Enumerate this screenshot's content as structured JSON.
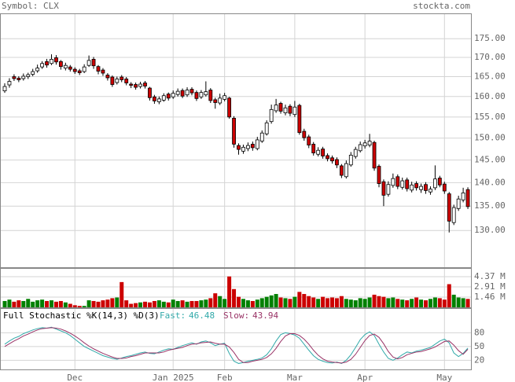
{
  "chart_data": [
    {
      "type": "candlestick",
      "title": "Symbol: CLX",
      "source": "stockta.com",
      "categories": [
        null,
        null,
        null,
        null,
        null,
        null,
        null,
        null,
        null,
        null,
        null,
        null,
        null,
        null,
        null,
        "Dec",
        null,
        null,
        null,
        null,
        null,
        null,
        null,
        null,
        null,
        null,
        null,
        null,
        null,
        null,
        null,
        null,
        null,
        null,
        null,
        null,
        "Jan 2025",
        null,
        null,
        null,
        null,
        null,
        null,
        null,
        null,
        null,
        null,
        "Feb",
        null,
        null,
        null,
        null,
        null,
        null,
        null,
        null,
        null,
        null,
        null,
        null,
        null,
        null,
        "Mar",
        null,
        null,
        null,
        null,
        null,
        null,
        null,
        null,
        null,
        null,
        null,
        null,
        null,
        null,
        "Apr",
        null,
        null,
        null,
        null,
        null,
        null,
        null,
        null,
        null,
        null,
        null,
        null,
        null,
        null,
        null,
        null,
        "May",
        null,
        null,
        null,
        null,
        null
      ],
      "open": [
        161.4,
        162.9,
        165.0,
        164.6,
        164.5,
        165.0,
        165.6,
        166.5,
        167.5,
        168.9,
        168.4,
        169.9,
        168.9,
        167.2,
        167.5,
        166.9,
        166.5,
        166.3,
        167.9,
        169.5,
        167.6,
        166.7,
        165.4,
        164.9,
        163.5,
        164.9,
        164.4,
        163.1,
        163.0,
        162.5,
        163.4,
        162.1,
        159.9,
        158.7,
        159.1,
        160.6,
        159.9,
        160.5,
        161.5,
        160.4,
        161.8,
        161.0,
        159.9,
        160.4,
        161.6,
        159.2,
        158.4,
        159.3,
        159.6,
        154.7,
        148.3,
        147.0,
        147.6,
        148.6,
        147.6,
        149.3,
        151.0,
        153.9,
        156.5,
        158.3,
        156.0,
        157.6,
        155.6,
        157.8,
        151.6,
        150.3,
        148.6,
        146.3,
        147.5,
        146.0,
        145.5,
        145.1,
        143.7,
        141.3,
        143.9,
        145.8,
        147.1,
        148.2,
        148.4,
        149.0,
        143.6,
        140.2,
        137.5,
        139.4,
        141.3,
        139.0,
        140.6,
        138.4,
        139.8,
        138.5,
        139.6,
        138.0,
        138.9,
        141.0,
        139.7,
        137.6,
        131.6,
        134.5,
        136.3,
        138.5
      ],
      "high": [
        163.3,
        164.6,
        165.6,
        165.1,
        165.8,
        166.0,
        167.0,
        168.1,
        169.0,
        169.6,
        170.8,
        170.6,
        169.3,
        168.6,
        168.0,
        167.4,
        167.0,
        168.2,
        170.5,
        170.1,
        168.0,
        167.2,
        165.9,
        165.3,
        165.0,
        165.4,
        164.9,
        163.6,
        163.5,
        163.7,
        163.9,
        162.4,
        160.4,
        160.0,
        160.8,
        161.0,
        161.5,
        162.0,
        162.0,
        162.3,
        162.3,
        161.5,
        161.6,
        163.8,
        162.1,
        159.7,
        160.7,
        160.9,
        159.9,
        155.2,
        148.8,
        148.5,
        149.0,
        149.2,
        150.3,
        151.8,
        154.2,
        158.0,
        159.4,
        158.7,
        158.0,
        158.1,
        158.9,
        158.2,
        152.2,
        150.8,
        149.1,
        147.9,
        148.0,
        146.5,
        146.0,
        145.6,
        144.1,
        144.9,
        146.8,
        148.0,
        149.2,
        149.6,
        151.0,
        149.4,
        144.0,
        140.7,
        140.3,
        142.0,
        141.8,
        141.1,
        141.1,
        140.2,
        140.3,
        139.8,
        140.1,
        139.2,
        143.8,
        141.5,
        140.2,
        138.0,
        135.3,
        137.2,
        138.9,
        139.0
      ],
      "low": [
        160.9,
        162.2,
        163.9,
        163.6,
        164.0,
        164.4,
        165.1,
        166.0,
        167.0,
        167.3,
        168.0,
        168.1,
        166.8,
        166.6,
        166.3,
        165.7,
        165.4,
        165.9,
        167.5,
        167.0,
        165.6,
        165.2,
        164.0,
        162.4,
        163.0,
        163.6,
        162.8,
        162.1,
        161.7,
        162.0,
        162.0,
        159.0,
        158.2,
        158.1,
        158.7,
        159.0,
        159.4,
        160.0,
        159.6,
        159.9,
        160.3,
        158.9,
        159.4,
        160.0,
        158.4,
        157.0,
        157.9,
        158.8,
        154.6,
        147.8,
        146.2,
        146.4,
        147.0,
        147.1,
        147.2,
        148.9,
        150.6,
        153.4,
        156.0,
        155.8,
        155.4,
        155.2,
        155.0,
        150.8,
        149.4,
        147.7,
        146.0,
        145.8,
        145.3,
        144.7,
        144.2,
        143.2,
        141.0,
        140.9,
        143.5,
        145.3,
        146.7,
        147.6,
        147.9,
        142.6,
        139.0,
        135.0,
        137.0,
        138.9,
        138.6,
        138.5,
        138.1,
        137.9,
        138.3,
        137.8,
        137.6,
        137.4,
        138.4,
        139.0,
        137.6,
        129.6,
        131.1,
        134.0,
        135.8,
        134.4
      ],
      "close": [
        162.5,
        163.8,
        164.5,
        164.2,
        165.1,
        165.5,
        166.3,
        167.2,
        168.4,
        168.0,
        169.5,
        168.8,
        167.6,
        167.9,
        166.9,
        166.3,
        166.0,
        167.5,
        169.2,
        167.8,
        166.4,
        165.9,
        164.7,
        163.0,
        164.4,
        164.2,
        163.4,
        162.8,
        162.3,
        163.1,
        162.6,
        159.7,
        158.9,
        159.4,
        160.2,
        159.6,
        160.8,
        161.3,
        160.1,
        161.6,
        160.9,
        159.5,
        161.0,
        161.2,
        159.0,
        158.5,
        159.6,
        160.2,
        155.0,
        148.6,
        147.4,
        147.9,
        148.3,
        147.8,
        149.6,
        151.2,
        153.6,
        156.8,
        157.9,
        156.4,
        157.2,
        155.9,
        157.4,
        151.3,
        150.1,
        148.4,
        146.6,
        147.2,
        145.9,
        145.3,
        144.8,
        143.9,
        141.6,
        144.2,
        146.1,
        147.4,
        148.5,
        148.9,
        149.3,
        143.2,
        139.8,
        137.3,
        139.6,
        140.9,
        139.2,
        140.4,
        138.7,
        139.5,
        138.9,
        139.2,
        138.3,
        138.6,
        140.8,
        139.5,
        138.2,
        131.9,
        134.7,
        136.5,
        137.8,
        134.9
      ],
      "up_color": "#ffffff",
      "down_color": "#cc0000",
      "log_scale": true,
      "grid": true,
      "ylim": [
        122.8,
        182.0
      ],
      "yticks": [
        {
          "value": 175,
          "label": "175.00"
        },
        {
          "value": 170,
          "label": "170.00"
        },
        {
          "value": 165,
          "label": "165.00"
        },
        {
          "value": 160,
          "label": "160.00"
        },
        {
          "value": 155,
          "label": "155.00"
        },
        {
          "value": 150,
          "label": "150.00"
        },
        {
          "value": 145,
          "label": "145.00"
        },
        {
          "value": 140,
          "label": "140.00"
        },
        {
          "value": 135,
          "label": "135.00"
        },
        {
          "value": 130,
          "label": "130.00"
        }
      ]
    },
    {
      "type": "bar",
      "values": [
        0.9,
        1.1,
        0.8,
        1.0,
        0.9,
        1.2,
        0.8,
        1.0,
        1.1,
        0.9,
        1.0,
        0.8,
        0.9,
        0.7,
        0.5,
        0.3,
        0.2,
        0.2,
        1.0,
        0.9,
        0.8,
        1.0,
        1.1,
        1.3,
        1.4,
        3.6,
        1.0,
        0.5,
        0.6,
        0.7,
        0.8,
        0.7,
        0.9,
        1.0,
        0.8,
        0.7,
        1.1,
        0.9,
        1.0,
        0.8,
        0.9,
        0.9,
        1.0,
        1.1,
        1.3,
        2.0,
        1.6,
        1.2,
        4.4,
        2.6,
        1.5,
        1.2,
        1.0,
        0.9,
        1.1,
        1.3,
        1.5,
        1.7,
        1.9,
        1.4,
        1.3,
        1.2,
        1.5,
        2.2,
        1.9,
        1.6,
        1.4,
        1.2,
        1.5,
        1.3,
        1.4,
        1.3,
        1.6,
        1.2,
        1.1,
        1.0,
        1.3,
        1.2,
        1.4,
        1.8,
        1.6,
        1.5,
        1.3,
        1.4,
        1.2,
        1.1,
        1.0,
        1.2,
        1.4,
        1.1,
        1.0,
        1.2,
        1.4,
        1.3,
        1.1,
        3.3,
        1.8,
        1.4,
        1.3,
        1.2
      ],
      "up_color": "#008000",
      "down_color": "#cc0000",
      "ylim": [
        0,
        5.49
      ],
      "yticks": [
        {
          "value": 4.37,
          "label": "4.37 M"
        },
        {
          "value": 2.91,
          "label": "2.91 M"
        },
        {
          "value": 1.46,
          "label": "1.46 M"
        }
      ]
    },
    {
      "type": "line",
      "title": "Full Stochastic %K(14,3) %D(3)",
      "series": [
        {
          "name": "Fast:",
          "color": "#33aaaa",
          "values": [
            55,
            62,
            68,
            72,
            78,
            82,
            86,
            89,
            91,
            90,
            92,
            88,
            84,
            80,
            74,
            66,
            58,
            50,
            45,
            40,
            35,
            30,
            27,
            24,
            22,
            25,
            28,
            30,
            33,
            36,
            38,
            35,
            34,
            38,
            42,
            45,
            44,
            48,
            52,
            55,
            58,
            55,
            60,
            62,
            58,
            52,
            55,
            57,
            35,
            18,
            13,
            15,
            18,
            20,
            22,
            25,
            32,
            45,
            62,
            76,
            80,
            78,
            75,
            68,
            55,
            42,
            30,
            22,
            18,
            15,
            14,
            16,
            13,
            20,
            32,
            48,
            65,
            76,
            82,
            74,
            55,
            38,
            24,
            20,
            25,
            32,
            38,
            36,
            40,
            42,
            45,
            48,
            55,
            62,
            66,
            58,
            36,
            28,
            35,
            46.48
          ]
        },
        {
          "name": "Slow:",
          "color": "#993366",
          "values": [
            50,
            56,
            62,
            67,
            73,
            77,
            82,
            86,
            89,
            90,
            91,
            90,
            88,
            84,
            79,
            73,
            66,
            58,
            51,
            45,
            40,
            35,
            31,
            27,
            24,
            24,
            25,
            28,
            30,
            33,
            36,
            36,
            36,
            36,
            38,
            42,
            44,
            46,
            48,
            52,
            55,
            56,
            58,
            59,
            60,
            57,
            55,
            55,
            49,
            37,
            22,
            15,
            15,
            18,
            20,
            22,
            26,
            34,
            46,
            61,
            73,
            78,
            78,
            74,
            66,
            55,
            42,
            31,
            23,
            18,
            16,
            15,
            14,
            16,
            22,
            33,
            48,
            63,
            74,
            77,
            70,
            56,
            39,
            27,
            23,
            26,
            32,
            35,
            38,
            39,
            42,
            45,
            49,
            55,
            61,
            62,
            53,
            41,
            33,
            43.94
          ]
        }
      ],
      "ylim": [
        0,
        132
      ],
      "yticks": [
        80,
        50,
        20
      ]
    }
  ]
}
